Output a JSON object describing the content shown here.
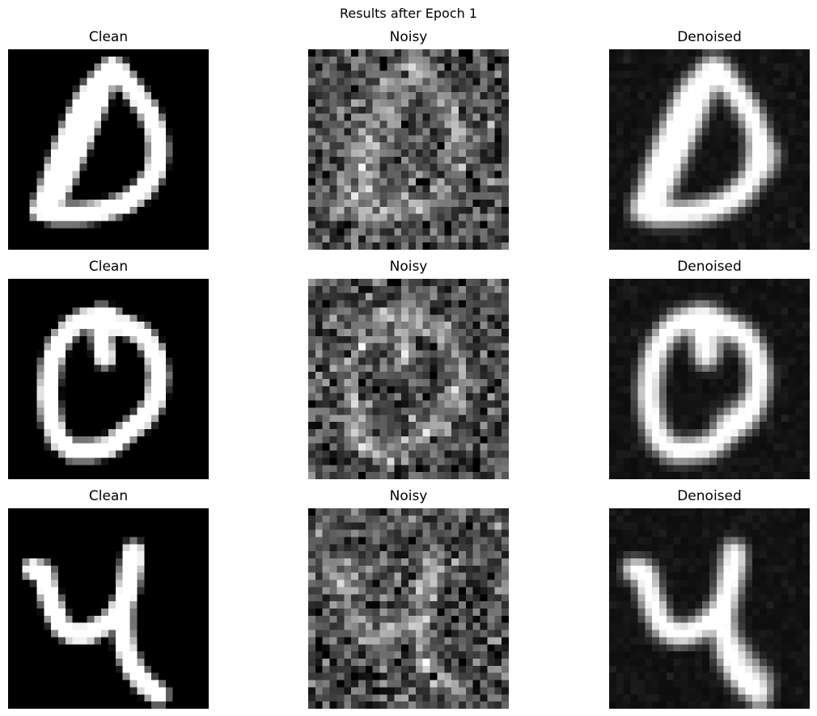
{
  "figure": {
    "suptitle": "Results after Epoch 1"
  },
  "rows": [
    {
      "digit": "0",
      "shape": "triangle-loop",
      "titles": [
        "Clean",
        "Noisy",
        "Denoised"
      ]
    },
    {
      "digit": "0",
      "shape": "round-loop",
      "titles": [
        "Clean",
        "Noisy",
        "Denoised"
      ]
    },
    {
      "digit": "4",
      "shape": "four",
      "titles": [
        "Clean",
        "Noisy",
        "Denoised"
      ]
    }
  ],
  "image_grid": {
    "rows": 3,
    "cols": 3,
    "pixel_resolution": [
      28,
      28
    ],
    "colormap": "gray",
    "axes_visible": false
  }
}
